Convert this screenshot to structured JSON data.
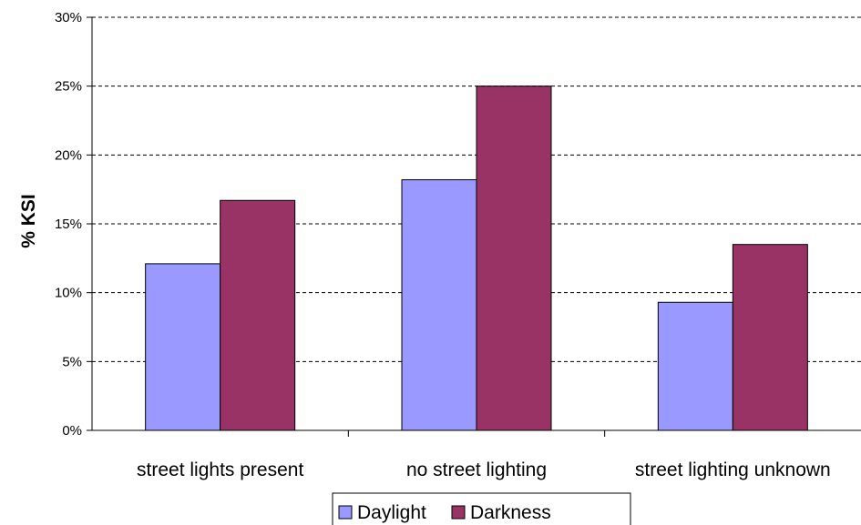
{
  "chart_data": {
    "type": "bar",
    "categories": [
      "street lights present",
      "no street lighting",
      "street lighting unknown"
    ],
    "series": [
      {
        "name": "Daylight",
        "values": [
          12.1,
          18.2,
          9.3
        ],
        "color": "#9999ff"
      },
      {
        "name": "Darkness",
        "values": [
          16.7,
          25.0,
          13.5
        ],
        "color": "#993366"
      }
    ],
    "ylabel": "% KSI",
    "ylim": [
      0,
      30
    ],
    "y_ticks": [
      0,
      5,
      10,
      15,
      20,
      25,
      30
    ],
    "y_tick_labels": [
      "0%",
      "5%",
      "10%",
      "15%",
      "20%",
      "25%",
      "30%"
    ],
    "grid": true,
    "grid_style": "dashed",
    "legend_position": "bottom"
  }
}
